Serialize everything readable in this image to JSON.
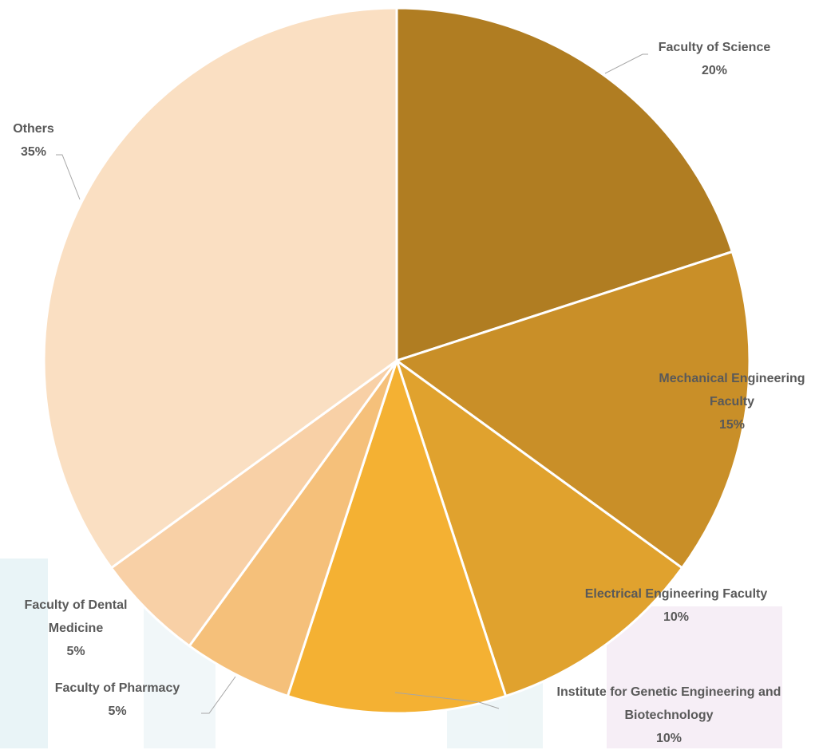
{
  "chart_data": {
    "type": "pie",
    "categories": [
      "Faculty of Science",
      "Mechanical Engineering Faculty",
      "Electrical Engineering Faculty",
      "Institute for Genetic Engineering and Biotechnology",
      "Faculty of Pharmacy",
      "Faculty of Dental Medicine",
      "Others"
    ],
    "values": [
      20,
      15,
      10,
      10,
      5,
      5,
      35
    ],
    "value_labels": [
      "20%",
      "15%",
      "10%",
      "10%",
      "5%",
      "5%",
      "35%"
    ],
    "colors": [
      "#b07d22",
      "#c98f28",
      "#e0a22e",
      "#f4b133",
      "#f5c07a",
      "#f8d0a6",
      "#fadfc2"
    ]
  }
}
